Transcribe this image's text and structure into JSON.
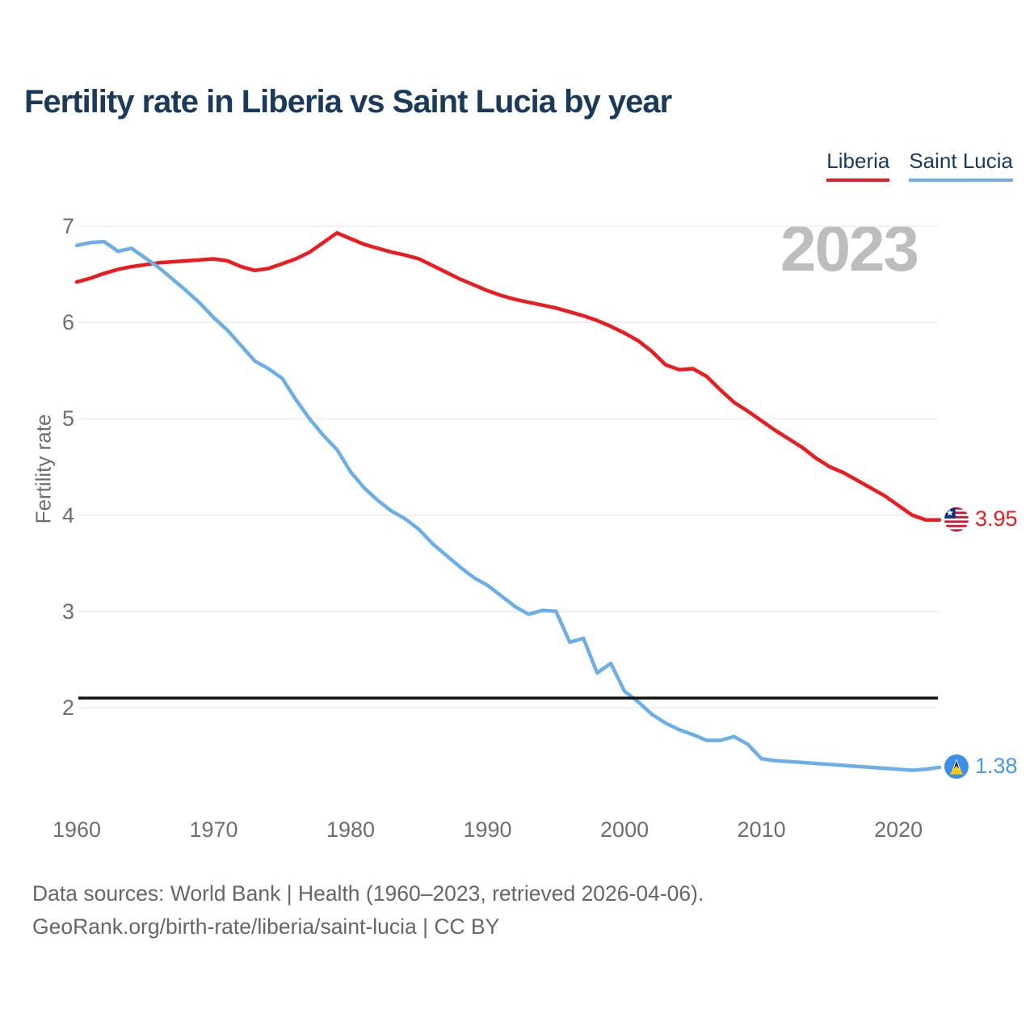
{
  "title": "Fertility rate in Liberia vs Saint Lucia by year",
  "legend": {
    "items": [
      {
        "label": "Liberia",
        "color": "#ed1b1e"
      },
      {
        "label": "Saint Lucia",
        "color": "#6cafe8"
      }
    ]
  },
  "watermark": "2023",
  "end_labels": {
    "liberia_value": "3.95",
    "saint_lucia_value": "1.38"
  },
  "footer": {
    "line1": "Data sources: World Bank | Health (1960–2023, retrieved 2026-04-06).",
    "line2": "GeoRank.org/birth-rate/liberia/saint-lucia | CC BY"
  },
  "chart_data": {
    "type": "line",
    "title": "Fertility rate in Liberia vs Saint Lucia by year",
    "xlabel": "",
    "ylabel": "Fertility rate",
    "x_range": [
      1960,
      2023
    ],
    "ylim": [
      1.2,
      7.1
    ],
    "grid": "horizontal",
    "legend_position": "top-right",
    "x_ticks": [
      1960,
      1970,
      1980,
      1990,
      2000,
      2010,
      2020
    ],
    "y_ticks": [
      7,
      6,
      5,
      4,
      3,
      2
    ],
    "reference_line": {
      "value": 2.1,
      "color": "#111111",
      "meaning": "replacement level"
    },
    "years": [
      1960,
      1961,
      1962,
      1963,
      1964,
      1965,
      1966,
      1967,
      1968,
      1969,
      1970,
      1971,
      1972,
      1973,
      1974,
      1975,
      1976,
      1977,
      1978,
      1979,
      1980,
      1981,
      1982,
      1983,
      1984,
      1985,
      1986,
      1987,
      1988,
      1989,
      1990,
      1991,
      1992,
      1993,
      1994,
      1995,
      1996,
      1997,
      1998,
      1999,
      2000,
      2001,
      2002,
      2003,
      2004,
      2005,
      2006,
      2007,
      2008,
      2009,
      2010,
      2011,
      2012,
      2013,
      2014,
      2015,
      2016,
      2017,
      2018,
      2019,
      2020,
      2021,
      2022,
      2023
    ],
    "series": [
      {
        "name": "Liberia",
        "color": "#ed1b1e",
        "last_value": 3.95,
        "values": [
          6.42,
          6.46,
          6.51,
          6.55,
          6.58,
          6.6,
          6.62,
          6.63,
          6.64,
          6.65,
          6.66,
          6.64,
          6.58,
          6.54,
          6.56,
          6.61,
          6.66,
          6.73,
          6.83,
          6.93,
          6.87,
          6.81,
          6.77,
          6.73,
          6.7,
          6.66,
          6.59,
          6.52,
          6.45,
          6.39,
          6.33,
          6.28,
          6.24,
          6.21,
          6.18,
          6.15,
          6.11,
          6.07,
          6.02,
          5.96,
          5.89,
          5.81,
          5.7,
          5.56,
          5.51,
          5.52,
          5.44,
          5.3,
          5.17,
          5.08,
          4.98,
          4.88,
          4.79,
          4.7,
          4.59,
          4.5,
          4.44,
          4.36,
          4.28,
          4.2,
          4.1,
          4.0,
          3.95,
          3.95
        ]
      },
      {
        "name": "Saint Lucia",
        "color": "#6cafe8",
        "last_value": 1.38,
        "values": [
          6.8,
          6.83,
          6.84,
          6.74,
          6.77,
          6.67,
          6.57,
          6.45,
          6.33,
          6.2,
          6.05,
          5.92,
          5.76,
          5.6,
          5.52,
          5.42,
          5.2,
          5.0,
          4.83,
          4.68,
          4.45,
          4.28,
          4.15,
          4.04,
          3.96,
          3.85,
          3.7,
          3.58,
          3.46,
          3.35,
          3.27,
          3.16,
          3.05,
          2.97,
          3.01,
          3.0,
          2.68,
          2.72,
          2.36,
          2.46,
          2.17,
          2.06,
          1.93,
          1.84,
          1.77,
          1.72,
          1.66,
          1.66,
          1.7,
          1.62,
          1.47,
          1.45,
          1.44,
          1.43,
          1.42,
          1.41,
          1.4,
          1.39,
          1.38,
          1.37,
          1.36,
          1.35,
          1.36,
          1.38
        ]
      }
    ]
  }
}
